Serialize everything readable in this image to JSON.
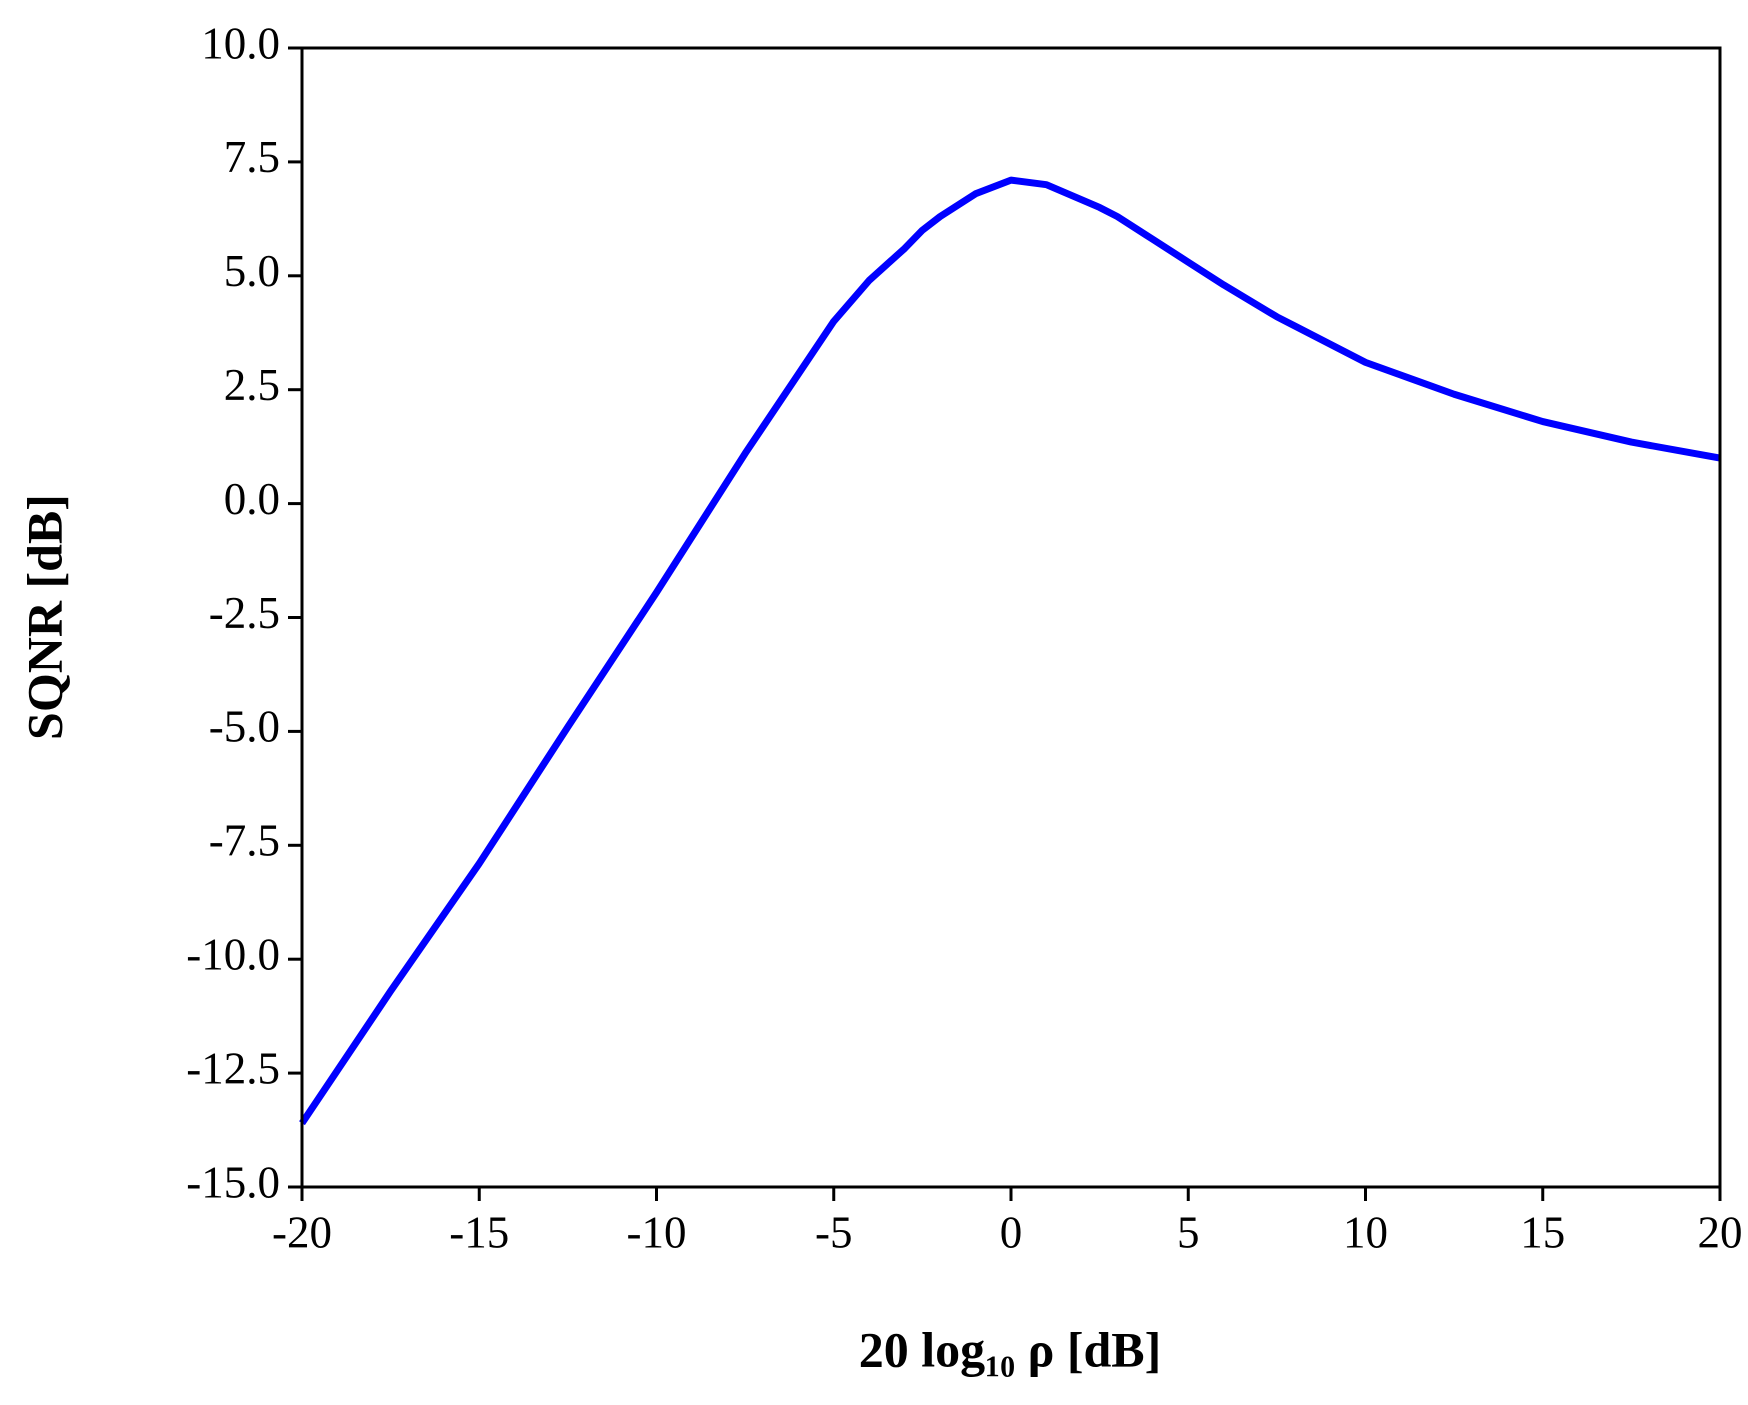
{
  "chart_data": {
    "type": "line",
    "x_label": "20 log₁₀ ρ [dB]",
    "y_label": "SQNR [dB]",
    "x": [
      -20,
      -17.5,
      -15,
      -12.5,
      -10,
      -7.5,
      -5,
      -4,
      -3,
      -2.5,
      -2,
      -1,
      0,
      1,
      2.5,
      3,
      4,
      5,
      6,
      7.5,
      8,
      10,
      12.5,
      15,
      17.5,
      20
    ],
    "series": [
      {
        "name": "SQNR",
        "color": "#0000ff",
        "values": [
          -13.6,
          -10.7,
          -7.9,
          -4.9,
          -1.95,
          1.1,
          4.0,
          4.9,
          5.6,
          6.0,
          6.3,
          6.8,
          7.1,
          7.0,
          6.5,
          6.3,
          5.8,
          5.3,
          4.8,
          4.1,
          3.9,
          3.1,
          2.4,
          1.8,
          1.35,
          1.0
        ]
      }
    ],
    "xlim": [
      -20,
      20
    ],
    "xticks": [
      -20,
      -15,
      -10,
      -5,
      0,
      5,
      10,
      15,
      20
    ],
    "ylim": [
      -15,
      10
    ],
    "yticks": [
      {
        "value": -15,
        "label": "-15.0"
      },
      {
        "value": -12.5,
        "label": "-12.5"
      },
      {
        "value": -10,
        "label": "-10.0"
      },
      {
        "value": -7.5,
        "label": "-7.5"
      },
      {
        "value": -5,
        "label": "-5.0"
      },
      {
        "value": -2.5,
        "label": "-2.5"
      },
      {
        "value": 0,
        "label": "0.0"
      },
      {
        "value": 2.5,
        "label": "2.5"
      },
      {
        "value": 5,
        "label": "5.0"
      },
      {
        "value": 7.5,
        "label": "7.5"
      },
      {
        "value": 10,
        "label": "10.0"
      }
    ],
    "grid": false
  }
}
